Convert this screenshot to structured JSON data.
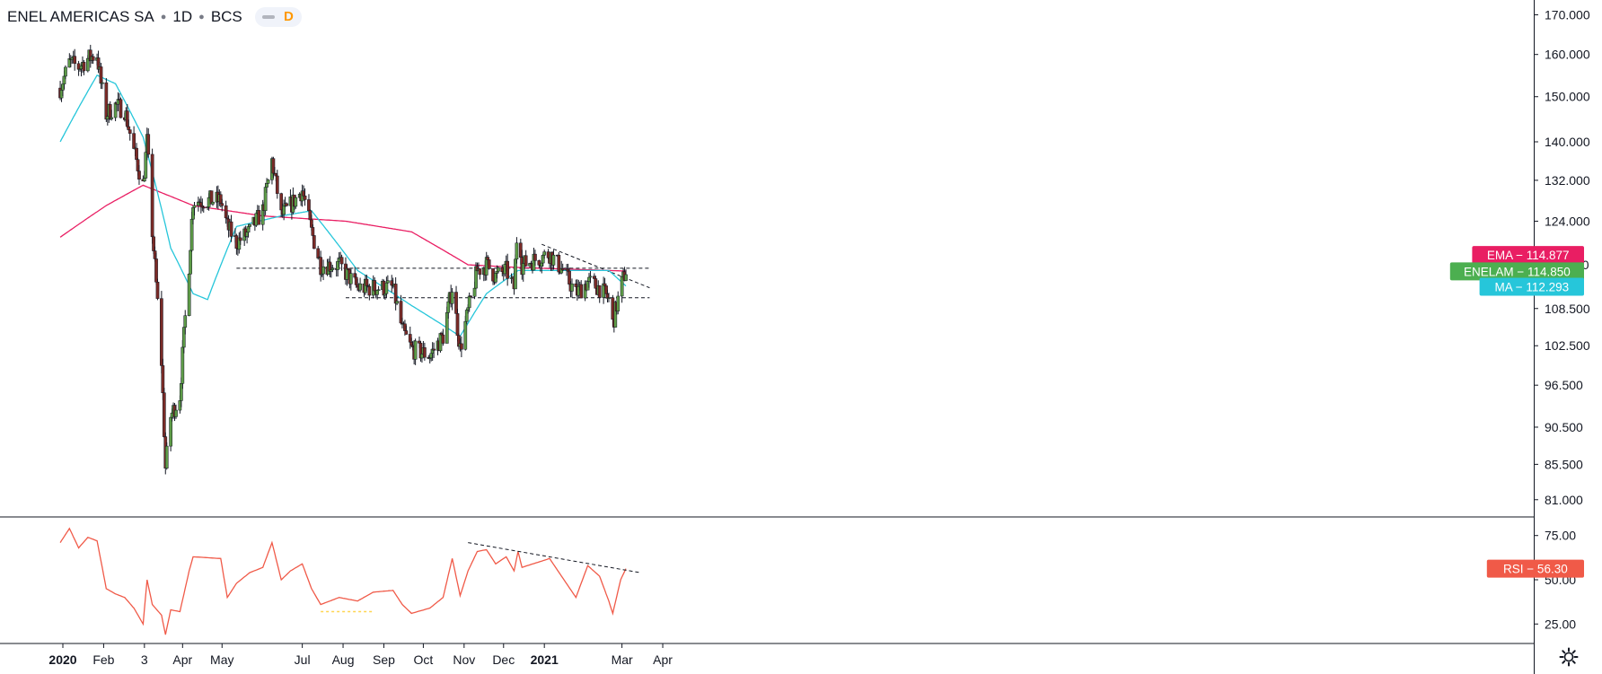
{
  "header": {
    "symbol": "ENEL AMERICAS SA",
    "interval": "1D",
    "exchange": "BCS",
    "mode_letter": "D"
  },
  "colors": {
    "up": "#26a69a",
    "candle_up": "#5e9c48",
    "candle_down": "#7b2b27",
    "ema": "#e91e63",
    "ma": "#26c6da",
    "price_badge": "#4caf50",
    "rsi": "#f05a48",
    "trendline": "#131722"
  },
  "chart_data": [
    {
      "type": "candlestick",
      "title": "ENEL AMERICAS SA · 1D · BCS",
      "y_scale": "log",
      "ylim": [
        79,
        172
      ],
      "y_ticks": [
        "170.000",
        "160.000",
        "150.000",
        "140.000",
        "132.000",
        "124.000",
        "116.000",
        "108.500",
        "102.500",
        "96.500",
        "90.500",
        "85.500",
        "81.000"
      ],
      "x_ticks": [
        "2020",
        "Feb",
        "3",
        "Apr",
        "May",
        "Jul",
        "Aug",
        "Sep",
        "Oct",
        "Nov",
        "Dec",
        "2021",
        "Mar",
        "Apr"
      ],
      "price_path": [
        [
          "2019-12-30",
          152
        ],
        [
          "2020-01-06",
          158
        ],
        [
          "2020-01-13",
          157
        ],
        [
          "2020-01-20",
          159
        ],
        [
          "2020-01-27",
          160
        ],
        [
          "2020-01-30",
          153
        ],
        [
          "2020-02-03",
          146
        ],
        [
          "2020-02-10",
          148
        ],
        [
          "2020-02-17",
          147
        ],
        [
          "2020-02-24",
          138
        ],
        [
          "2020-03-02",
          131
        ],
        [
          "2020-03-05",
          140
        ],
        [
          "2020-03-09",
          122
        ],
        [
          "2020-03-16",
          100
        ],
        [
          "2020-03-19",
          85
        ],
        [
          "2020-03-23",
          92
        ],
        [
          "2020-03-30",
          95
        ],
        [
          "2020-04-06",
          116
        ],
        [
          "2020-04-09",
          128
        ],
        [
          "2020-04-20",
          128
        ],
        [
          "2020-04-30",
          128
        ],
        [
          "2020-05-05",
          123
        ],
        [
          "2020-05-12",
          120
        ],
        [
          "2020-05-22",
          122
        ],
        [
          "2020-06-01",
          126
        ],
        [
          "2020-06-08",
          136
        ],
        [
          "2020-06-15",
          125
        ],
        [
          "2020-06-22",
          127
        ],
        [
          "2020-07-01",
          130
        ],
        [
          "2020-07-08",
          122
        ],
        [
          "2020-07-15",
          116
        ],
        [
          "2020-07-29",
          116
        ],
        [
          "2020-08-12",
          112
        ],
        [
          "2020-08-24",
          112
        ],
        [
          "2020-09-08",
          112
        ],
        [
          "2020-09-15",
          105
        ],
        [
          "2020-09-22",
          102
        ],
        [
          "2020-10-06",
          101
        ],
        [
          "2020-10-16",
          104
        ],
        [
          "2020-10-23",
          112
        ],
        [
          "2020-10-29",
          102
        ],
        [
          "2020-11-04",
          108
        ],
        [
          "2020-11-11",
          115
        ],
        [
          "2020-11-18",
          116
        ],
        [
          "2020-11-25",
          114
        ],
        [
          "2020-12-03",
          115
        ],
        [
          "2020-12-09",
          112
        ],
        [
          "2020-12-12",
          125
        ],
        [
          "2020-12-15",
          116
        ],
        [
          "2021-01-05",
          118
        ],
        [
          "2021-01-15",
          115
        ],
        [
          "2021-01-25",
          111
        ],
        [
          "2021-02-03",
          113
        ],
        [
          "2021-02-12",
          112
        ],
        [
          "2021-02-19",
          110
        ],
        [
          "2021-02-22",
          106
        ],
        [
          "2021-02-28",
          112
        ],
        [
          "2021-03-04",
          115
        ]
      ],
      "series": [
        {
          "name": "EMA",
          "value": "114.877",
          "path": [
            [
              "2019-12-30",
              121
            ],
            [
              "2020-02-03",
              127
            ],
            [
              "2020-03-02",
              131
            ],
            [
              "2020-04-09",
              127
            ],
            [
              "2020-06-01",
              125
            ],
            [
              "2020-08-03",
              124
            ],
            [
              "2020-09-22",
              122
            ],
            [
              "2020-11-04",
              116
            ],
            [
              "2020-12-15",
              115.5
            ],
            [
              "2021-03-04",
              114.9
            ]
          ]
        },
        {
          "name": "MA",
          "value": "112.293",
          "path": [
            [
              "2019-12-30",
              140
            ],
            [
              "2020-01-27",
              155
            ],
            [
              "2020-02-10",
              153
            ],
            [
              "2020-03-02",
              141
            ],
            [
              "2020-03-23",
              119
            ],
            [
              "2020-04-09",
              111
            ],
            [
              "2020-04-20",
              110
            ],
            [
              "2020-05-12",
              123
            ],
            [
              "2020-06-15",
              125
            ],
            [
              "2020-07-08",
              126
            ],
            [
              "2020-08-12",
              115
            ],
            [
              "2020-09-22",
              109
            ],
            [
              "2020-10-29",
              104
            ],
            [
              "2020-11-18",
              111
            ],
            [
              "2020-12-12",
              115
            ],
            [
              "2021-01-15",
              115
            ],
            [
              "2021-02-19",
              115
            ],
            [
              "2021-03-04",
              112.3
            ]
          ]
        }
      ],
      "last_price": {
        "name": "ENELAM",
        "value": "114.850"
      },
      "lines": {
        "resistance": {
          "from": "2020-05-12",
          "to": "2021-03-22",
          "y": 115.4
        },
        "support": {
          "from": "2020-08-03",
          "to": "2021-03-22",
          "y": 110.3
        },
        "down_trend": {
          "from": "2020-12-30",
          "to": "2021-03-22",
          "y": [
            119.7,
            112
          ]
        }
      }
    },
    {
      "type": "line",
      "title": "RSI",
      "ylim": [
        15,
        85
      ],
      "y_ticks": [
        "75.00",
        "50.00",
        "25.00"
      ],
      "series": [
        {
          "name": "RSI",
          "value": "56.30",
          "path": [
            [
              "2019-12-30",
              71
            ],
            [
              "2020-01-06",
              79
            ],
            [
              "2020-01-13",
              68
            ],
            [
              "2020-01-20",
              74
            ],
            [
              "2020-01-27",
              72
            ],
            [
              "2020-02-03",
              45
            ],
            [
              "2020-02-10",
              42
            ],
            [
              "2020-02-17",
              40
            ],
            [
              "2020-02-24",
              34
            ],
            [
              "2020-03-02",
              25
            ],
            [
              "2020-03-05",
              50
            ],
            [
              "2020-03-09",
              36
            ],
            [
              "2020-03-16",
              30
            ],
            [
              "2020-03-19",
              19
            ],
            [
              "2020-03-23",
              33
            ],
            [
              "2020-03-30",
              32
            ],
            [
              "2020-04-06",
              55
            ],
            [
              "2020-04-09",
              63
            ],
            [
              "2020-04-30",
              62
            ],
            [
              "2020-05-05",
              40
            ],
            [
              "2020-05-12",
              48
            ],
            [
              "2020-05-22",
              54
            ],
            [
              "2020-06-01",
              57
            ],
            [
              "2020-06-08",
              71
            ],
            [
              "2020-06-15",
              50
            ],
            [
              "2020-06-22",
              55
            ],
            [
              "2020-07-01",
              59
            ],
            [
              "2020-07-08",
              45
            ],
            [
              "2020-07-15",
              36
            ],
            [
              "2020-07-29",
              40
            ],
            [
              "2020-08-12",
              38
            ],
            [
              "2020-08-24",
              43
            ],
            [
              "2020-09-08",
              44
            ],
            [
              "2020-09-15",
              36
            ],
            [
              "2020-09-22",
              31
            ],
            [
              "2020-10-06",
              34
            ],
            [
              "2020-10-16",
              40
            ],
            [
              "2020-10-23",
              62
            ],
            [
              "2020-10-29",
              41
            ],
            [
              "2020-11-04",
              55
            ],
            [
              "2020-11-11",
              66
            ],
            [
              "2020-11-18",
              67
            ],
            [
              "2020-11-25",
              59
            ],
            [
              "2020-12-03",
              63
            ],
            [
              "2020-12-09",
              55
            ],
            [
              "2020-12-12",
              66
            ],
            [
              "2020-12-15",
              57
            ],
            [
              "2021-01-05",
              62
            ],
            [
              "2021-01-15",
              51
            ],
            [
              "2021-01-25",
              40
            ],
            [
              "2021-02-03",
              58
            ],
            [
              "2021-02-12",
              52
            ],
            [
              "2021-02-19",
              38
            ],
            [
              "2021-02-22",
              31
            ],
            [
              "2021-02-28",
              50
            ],
            [
              "2021-03-04",
              56.3
            ]
          ]
        }
      ],
      "lines": {
        "down_trend": {
          "from": "2020-11-04",
          "to": "2021-03-15",
          "y": [
            71,
            54
          ]
        },
        "oversold_marker": {
          "from": "2020-07-15",
          "to": "2020-08-24",
          "y": 32
        }
      }
    }
  ]
}
